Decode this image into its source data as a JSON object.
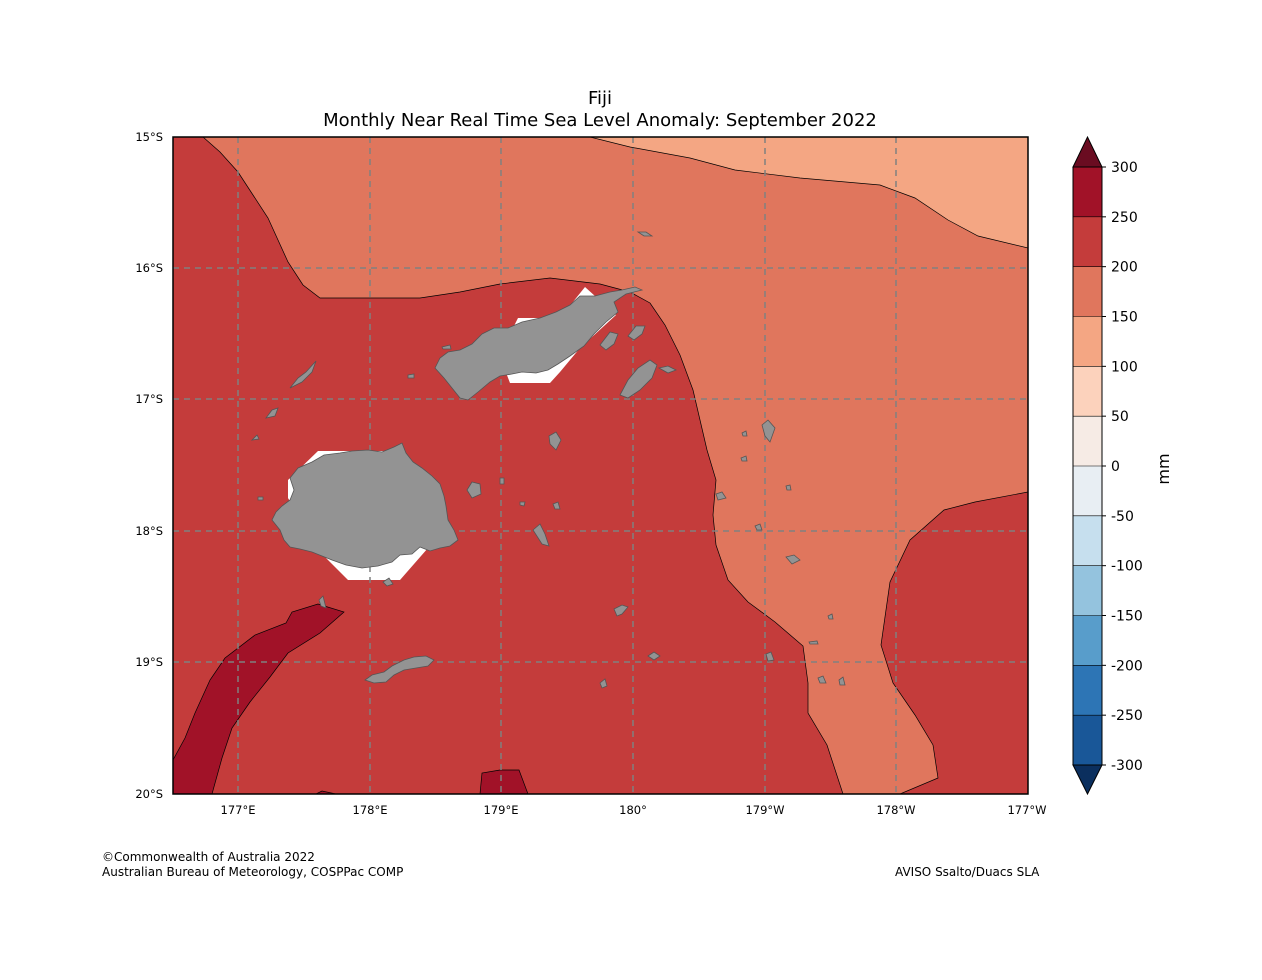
{
  "title": "Fiji",
  "subtitle": "Monthly Near Real Time Sea Level Anomaly: September 2022",
  "map": {
    "lat_ticks": [
      "15°S",
      "16°S",
      "17°S",
      "18°S",
      "19°S",
      "20°S"
    ],
    "lon_ticks": [
      "177°E",
      "178°E",
      "179°E",
      "180°",
      "179°W",
      "178°W",
      "177°W"
    ],
    "land_color": "#939393",
    "grid": true
  },
  "colorbar": {
    "unit": "mm",
    "ticks": [
      "300",
      "250",
      "200",
      "150",
      "100",
      "50",
      "0",
      "-50",
      "-100",
      "-150",
      "-200",
      "-250",
      "-300"
    ],
    "colors": [
      "#a11228",
      "#c43c3b",
      "#e0765d",
      "#f4a683",
      "#fcd2bc",
      "#f6ebe5",
      "#e8eef3",
      "#c6dfee",
      "#94c3de",
      "#589dcb",
      "#2d75b5",
      "#195798"
    ],
    "extend_max_color": "#6a0c21",
    "extend_min_color": "#0b2f5e"
  },
  "footer": {
    "copyright": "©Commonwealth of Australia 2022",
    "agency": "Australian Bureau of Meteorology, COSPPac COMP",
    "source": "AVISO Ssalto/Duacs SLA"
  }
}
